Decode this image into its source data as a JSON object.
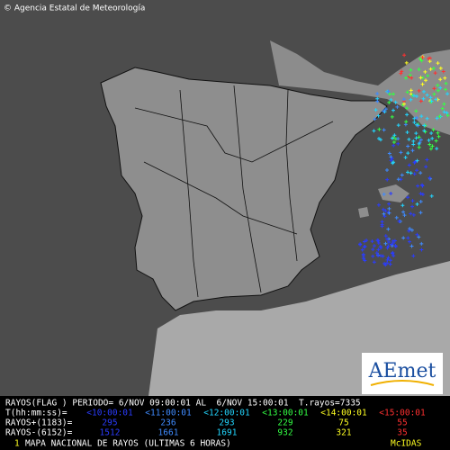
{
  "credit": "© Agencia Estatal de Meteorología",
  "logo": "AEmet",
  "panel": {
    "period": "RAYOS(FLAG ) PERIODO= 6/NOV 09:00:01 AL  6/NOV 15:00:01  T.rayos=7335",
    "time_label": "T(hh:mm:ss)=",
    "times": [
      "<10:00:01",
      "<11:00:01",
      "<12:00:01",
      "<13:00:01",
      "<14:00:01",
      "<15:00:01"
    ],
    "positive_label": "RAYOS+(1183)=",
    "positive": [
      295,
      236,
      293,
      229,
      75,
      55
    ],
    "negative_label": "RAYOS-(6152)=",
    "negative": [
      1512,
      1661,
      1691,
      932,
      321,
      35
    ],
    "footer_number": "1",
    "footer": "MAPA NACIONAL DE RAYOS (ULTIMAS 6 HORAS)",
    "system": "McIDAS"
  }
}
